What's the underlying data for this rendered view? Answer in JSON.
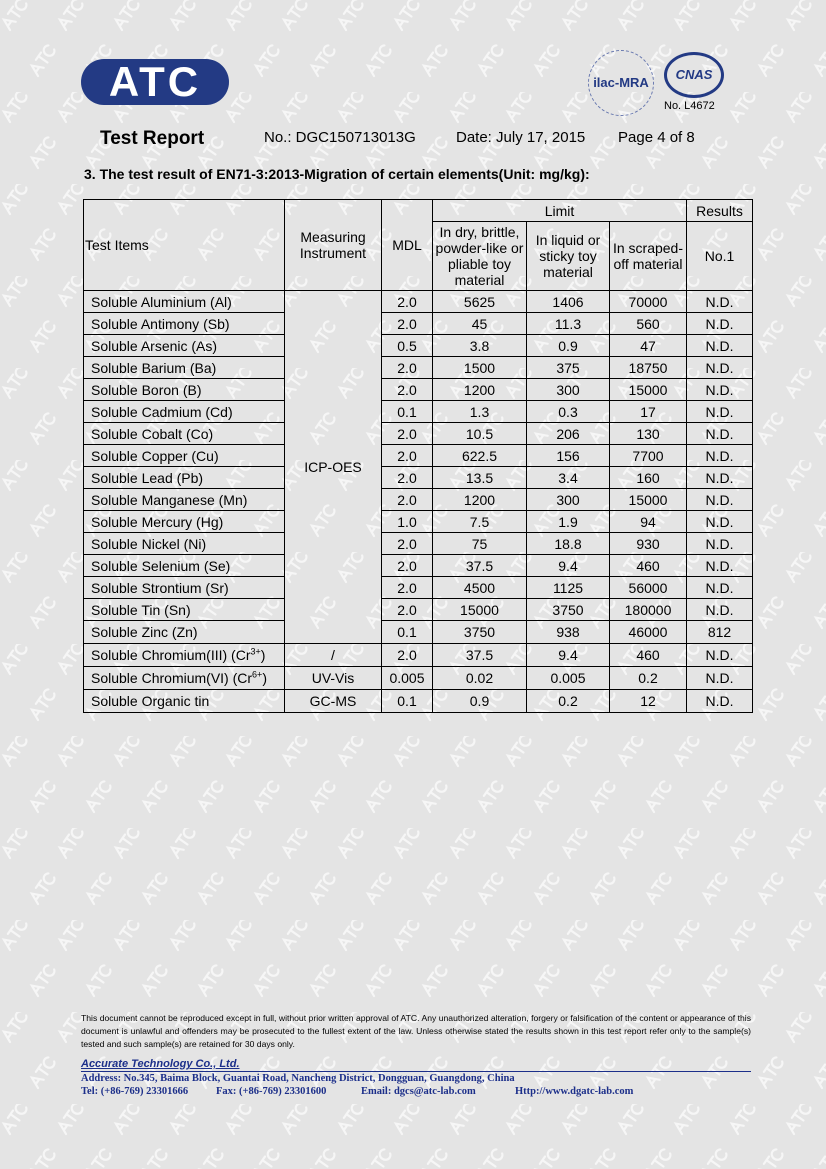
{
  "watermark": "ATC",
  "logo": {
    "text": "ATC",
    "ilac": "ilac-MRA",
    "cnas": "CNAS",
    "cnas_no": "No. L4672"
  },
  "header": {
    "title": "Test Report",
    "report_no": "No.: DGC150713013G",
    "date": "Date: July 17, 2015",
    "page": "Page 4 of 8"
  },
  "section_title": "3.  The test result of EN71-3:2013-Migration of certain elements(Unit: mg/kg):",
  "table": {
    "headers": {
      "test_items": "Test Items",
      "instrument": "Measuring Instrument",
      "mdl": "MDL",
      "limit": "Limit",
      "results": "Results",
      "limit_dry": "In dry, brittle, powder-like or pliable toy material",
      "limit_liquid": "In liquid or sticky toy material",
      "limit_scraped": "In scraped-off material",
      "no1": "No.1"
    },
    "icp_instrument": "ICP-OES",
    "rows": [
      {
        "item": "Soluble Aluminium (Al)",
        "mdl": "2.0",
        "dry": "5625",
        "liquid": "1406",
        "scraped": "70000",
        "result": "N.D."
      },
      {
        "item": "Soluble Antimony (Sb)",
        "mdl": "2.0",
        "dry": "45",
        "liquid": "11.3",
        "scraped": "560",
        "result": "N.D."
      },
      {
        "item": "Soluble Arsenic (As)",
        "mdl": "0.5",
        "dry": "3.8",
        "liquid": "0.9",
        "scraped": "47",
        "result": "N.D."
      },
      {
        "item": "Soluble Barium (Ba)",
        "mdl": "2.0",
        "dry": "1500",
        "liquid": "375",
        "scraped": "18750",
        "result": "N.D."
      },
      {
        "item": "Soluble Boron (B)",
        "mdl": "2.0",
        "dry": "1200",
        "liquid": "300",
        "scraped": "15000",
        "result": "N.D."
      },
      {
        "item": "Soluble Cadmium (Cd)",
        "mdl": "0.1",
        "dry": "1.3",
        "liquid": "0.3",
        "scraped": "17",
        "result": "N.D."
      },
      {
        "item": "Soluble Cobalt (Co)",
        "mdl": "2.0",
        "dry": "10.5",
        "liquid": "206",
        "scraped": "130",
        "result": "N.D."
      },
      {
        "item": "Soluble Copper (Cu)",
        "mdl": "2.0",
        "dry": "622.5",
        "liquid": "156",
        "scraped": "7700",
        "result": "N.D."
      },
      {
        "item": "Soluble Lead (Pb)",
        "mdl": "2.0",
        "dry": "13.5",
        "liquid": "3.4",
        "scraped": "160",
        "result": "N.D."
      },
      {
        "item": "Soluble Manganese (Mn)",
        "mdl": "2.0",
        "dry": "1200",
        "liquid": "300",
        "scraped": "15000",
        "result": "N.D."
      },
      {
        "item": "Soluble Mercury (Hg)",
        "mdl": "1.0",
        "dry": "7.5",
        "liquid": "1.9",
        "scraped": "94",
        "result": "N.D."
      },
      {
        "item": "Soluble Nickel (Ni)",
        "mdl": "2.0",
        "dry": "75",
        "liquid": "18.8",
        "scraped": "930",
        "result": "N.D."
      },
      {
        "item": "Soluble Selenium (Se)",
        "mdl": "2.0",
        "dry": "37.5",
        "liquid": "9.4",
        "scraped": "460",
        "result": "N.D."
      },
      {
        "item": "Soluble Strontium (Sr)",
        "mdl": "2.0",
        "dry": "4500",
        "liquid": "1125",
        "scraped": "56000",
        "result": "N.D."
      },
      {
        "item": "Soluble Tin (Sn)",
        "mdl": "2.0",
        "dry": "15000",
        "liquid": "3750",
        "scraped": "180000",
        "result": "N.D."
      },
      {
        "item": "Soluble Zinc (Zn)",
        "mdl": "0.1",
        "dry": "3750",
        "liquid": "938",
        "scraped": "46000",
        "result": "812"
      }
    ],
    "extra_rows": [
      {
        "item": "Soluble Chromium(III) (Cr",
        "sup": "3+",
        "item_end": ")",
        "instrument": "/",
        "mdl": "2.0",
        "dry": "37.5",
        "liquid": "9.4",
        "scraped": "460",
        "result": "N.D."
      },
      {
        "item": "Soluble Chromium(VI) (Cr",
        "sup": "6+",
        "item_end": ")",
        "instrument": "UV-Vis",
        "mdl": "0.005",
        "dry": "0.02",
        "liquid": "0.005",
        "scraped": "0.2",
        "result": "N.D."
      },
      {
        "item": "Soluble Organic tin",
        "sup": "",
        "item_end": "",
        "instrument": "GC-MS",
        "mdl": "0.1",
        "dry": "0.9",
        "liquid": "0.2",
        "scraped": "12",
        "result": "N.D."
      }
    ]
  },
  "footer": {
    "disclaimer": "This document cannot be reproduced except in full, without prior written approval of ATC. Any unauthorized alteration, forgery or falsification of the content or appearance of   this document is unlawful and offenders may be prosecuted to the fullest extent of the law. Unless otherwise stated the results shown in this test report refer only to the sample(s) tested and such sample(s) are retained for 30 days only.",
    "company": "Accurate Technology Co., Ltd.",
    "address": "Address: No.345, Baima Block, Guantai Road, Nancheng District, Dongguan, Guangdong, China",
    "tel": "Tel: (+86-769) 23301666",
    "fax": "Fax: (+86-769) 23301600",
    "email": "Email: dgcs@atc-lab.com",
    "web": "Http://www.dgatc-lab.com"
  }
}
